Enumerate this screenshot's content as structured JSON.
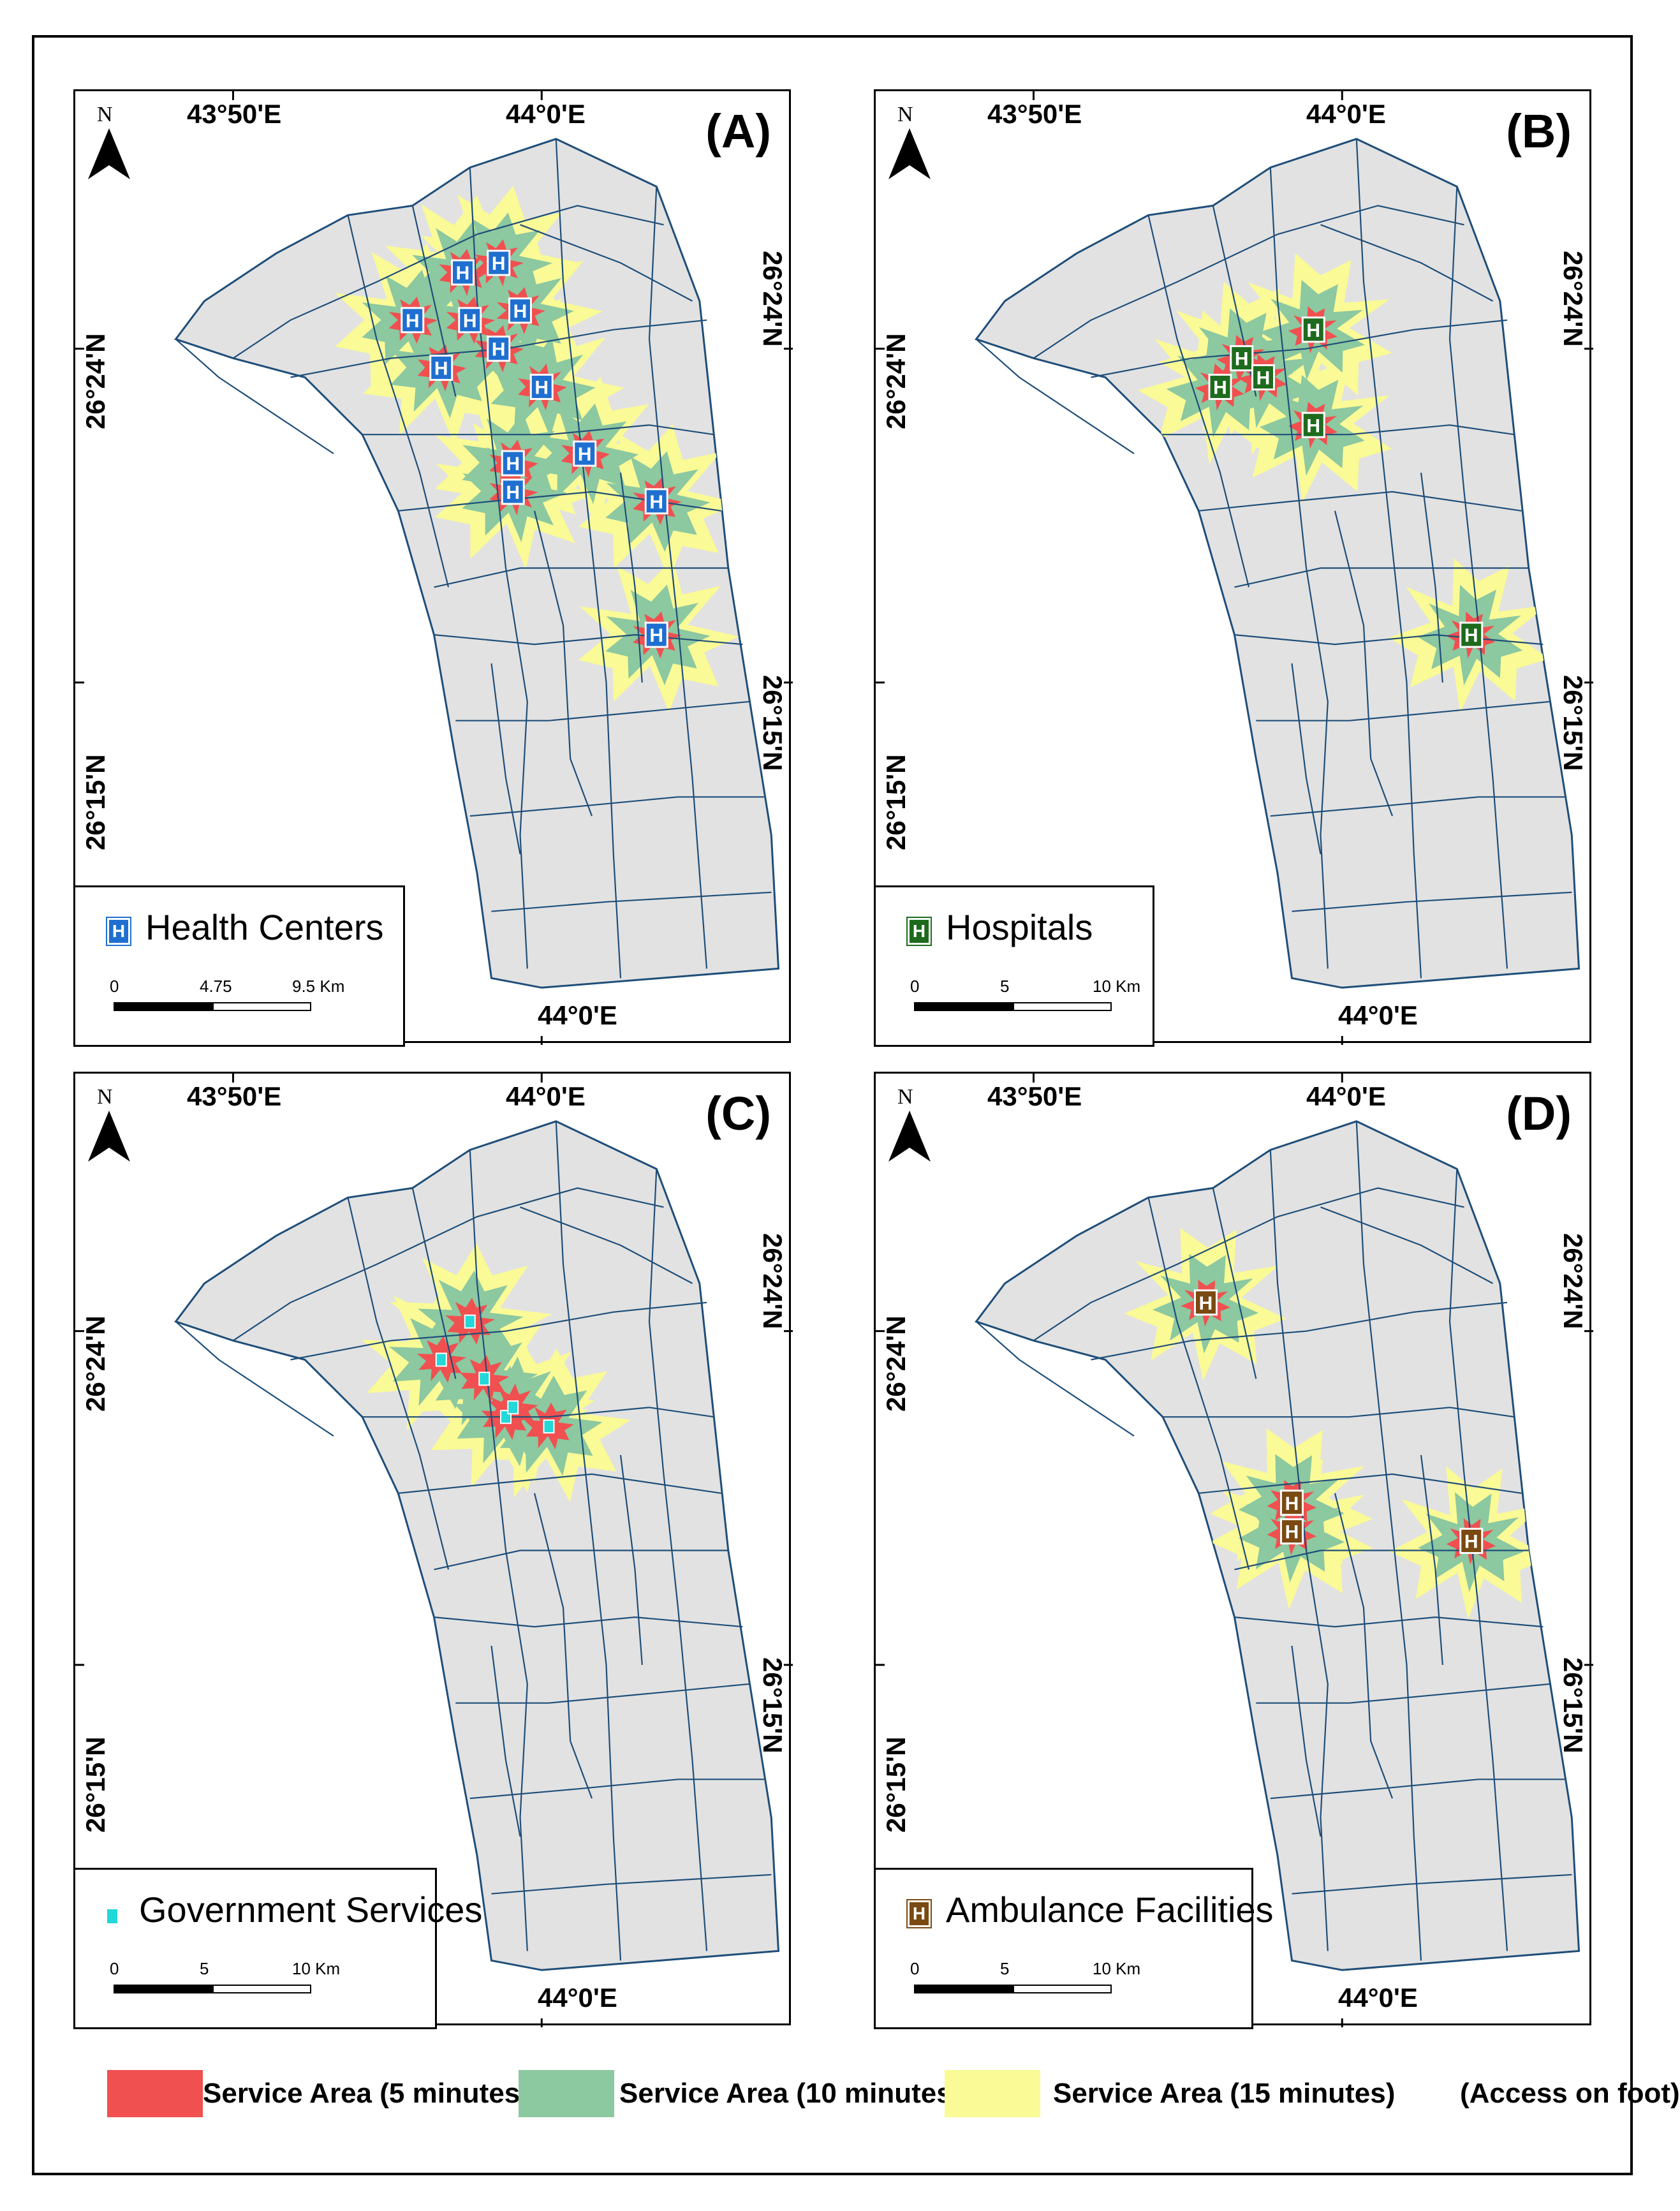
{
  "colors": {
    "land": "#e2e2e2",
    "roads": "#1f4e79",
    "zone_5min": "#f05050",
    "zone_10min": "#8cc8a0",
    "zone_15min": "#fafa96",
    "health_icon": "#1f6fd0",
    "hospital_icon": "#1e6b1e",
    "government_icon": "#22d8d8",
    "ambulance_icon": "#7a4a12"
  },
  "axes": {
    "lon_west": "43°50'E",
    "lon_east": "44°0'E",
    "lat_north": "26°24'N",
    "lat_south": "26°15'N"
  },
  "north_letter": "N",
  "panels": [
    {
      "id": "A",
      "label": "(A)",
      "legend_title": "Health Centers",
      "icon": "health-center-icon",
      "scale": [
        "0",
        "4.75",
        "9.5 Km"
      ],
      "facilities": [
        [
          0.54,
          0.19
        ],
        [
          0.59,
          0.18
        ],
        [
          0.47,
          0.24
        ],
        [
          0.55,
          0.24
        ],
        [
          0.62,
          0.23
        ],
        [
          0.59,
          0.27
        ],
        [
          0.51,
          0.29
        ],
        [
          0.65,
          0.31
        ],
        [
          0.61,
          0.39
        ],
        [
          0.71,
          0.38
        ],
        [
          0.61,
          0.42
        ],
        [
          0.81,
          0.43
        ],
        [
          0.81,
          0.57
        ]
      ]
    },
    {
      "id": "B",
      "label": "(B)",
      "legend_title": "Hospitals",
      "icon": "hospital-icon",
      "scale": [
        "0",
        "5",
        "10 Km"
      ],
      "facilities": [
        [
          0.61,
          0.25
        ],
        [
          0.51,
          0.28
        ],
        [
          0.54,
          0.3
        ],
        [
          0.48,
          0.31
        ],
        [
          0.61,
          0.35
        ],
        [
          0.83,
          0.57
        ]
      ]
    },
    {
      "id": "C",
      "label": "(C)",
      "legend_title": "Government Services",
      "icon": "government-service-icon",
      "scale": [
        "0",
        "5",
        "10 Km"
      ],
      "facilities": [
        [
          0.55,
          0.26
        ],
        [
          0.51,
          0.3
        ],
        [
          0.57,
          0.32
        ],
        [
          0.6,
          0.36
        ],
        [
          0.61,
          0.35
        ],
        [
          0.66,
          0.37
        ]
      ]
    },
    {
      "id": "D",
      "label": "(D)",
      "legend_title": "Ambulance Facilities",
      "icon": "ambulance-facility-icon",
      "scale": [
        "0",
        "5",
        "10 Km"
      ],
      "facilities": [
        [
          0.46,
          0.24
        ],
        [
          0.58,
          0.45
        ],
        [
          0.58,
          0.48
        ],
        [
          0.83,
          0.49
        ]
      ]
    }
  ],
  "legend": {
    "zone_5": "Service Area (5 minutes)",
    "zone_10": "Service Area (10 minutes)",
    "zone_15": "Service Area (15 minutes)",
    "note": "(Access on foot)"
  }
}
